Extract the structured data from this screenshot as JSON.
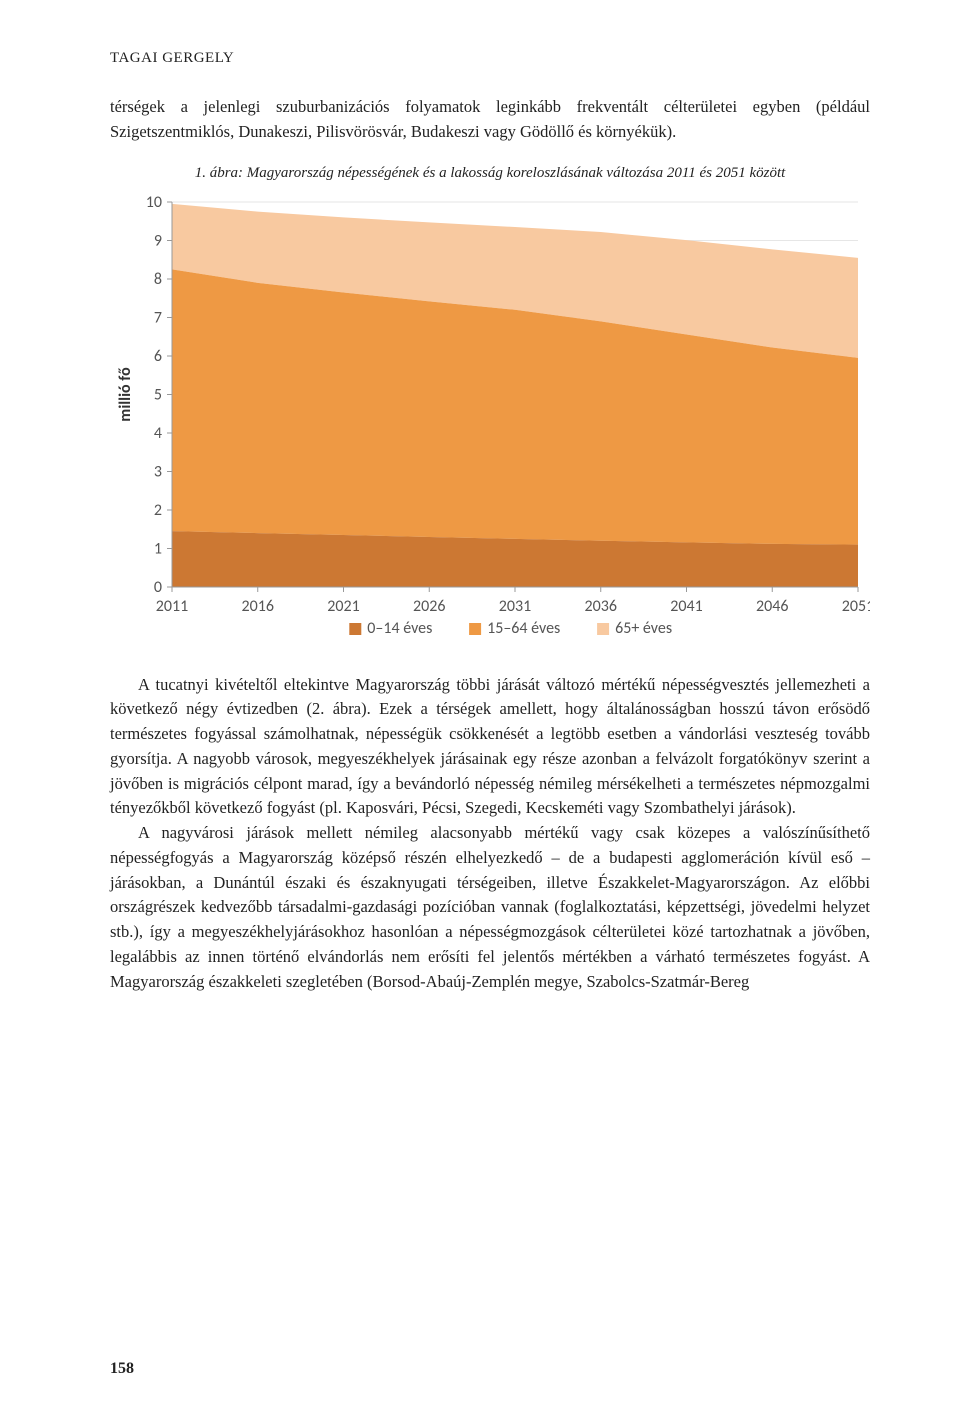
{
  "author": "TAGAI GERGELY",
  "para1": "térségek a jelenlegi szuburbanizációs folyamatok leginkább frekventált célterületei egyben (például Szigetszentmiklós, Dunakeszi, Pilisvörösvár, Budakeszi vagy Gödöllő és környékük).",
  "caption": "1. ábra: Magyarország népességének és a lakosság koreloszlásának változása 2011 és 2051 között",
  "chart": {
    "type": "area",
    "background_color": "#ffffff",
    "grid_color": "#e6e6e6",
    "plot_bg": "#ffffff",
    "font_family": "Calibri, Arial, sans-serif",
    "axis_fontsize": 16,
    "ylabel": "millió fő",
    "ylabel_fontsize": 16,
    "ylabel_rotation": -90,
    "ylim": [
      0,
      10
    ],
    "ytick_step": 1,
    "yticks": [
      0,
      1,
      2,
      3,
      4,
      5,
      6,
      7,
      8,
      9,
      10
    ],
    "xcats": [
      "2011",
      "2016",
      "2021",
      "2026",
      "2031",
      "2036",
      "2041",
      "2046",
      "2051"
    ],
    "series": [
      {
        "name": "0–14 éves",
        "color": "#cc7833",
        "values": [
          1.45,
          1.4,
          1.35,
          1.3,
          1.25,
          1.2,
          1.16,
          1.12,
          1.1
        ]
      },
      {
        "name": "15–64 éves",
        "color": "#ee9944",
        "values": [
          6.8,
          6.5,
          6.3,
          6.12,
          5.95,
          5.7,
          5.4,
          5.1,
          4.85
        ]
      },
      {
        "name": "65+ éves",
        "color": "#f8c9a0",
        "values": [
          1.7,
          1.85,
          1.95,
          2.05,
          2.15,
          2.32,
          2.45,
          2.55,
          2.6
        ]
      }
    ],
    "legend_box_size": 12,
    "legend_fontsize": 16,
    "legend_gap": 28
  },
  "para2": "A tucatnyi kivételtől eltekintve Magyarország többi járását változó mértékű népességvesztés jellemezheti a következő négy évtizedben (2. ábra). Ezek a térségek amellett, hogy általánosságban hosszú távon erősödő természetes fogyással számolhatnak, népességük csökkenését a legtöbb esetben a vándorlási veszteség tovább gyorsítja. A nagyobb városok, megyeszékhelyek járásainak egy része azonban a felvázolt forgatókönyv szerint a jövőben is migrációs célpont marad, így a bevándorló népesség némileg mérsékelheti a természetes népmozgalmi tényezőkből következő fogyást (pl. Kaposvári, Pécsi, Szegedi, Kecskeméti vagy Szombathelyi járások).",
  "para3": "A nagyvárosi járások mellett némileg alacsonyabb mértékű vagy csak közepes a valószínűsíthető népességfogyás a Magyarország középső részén elhelyezkedő – de a budapesti agglomeráción kívül eső – járásokban, a Dunántúl északi és északnyugati térségeiben, illetve Északkelet-Magyarországon. Az előbbi országrészek kedvezőbb társadalmi-gazdasági pozícióban vannak (foglalkoztatási, képzettségi, jövedelmi helyzet stb.), így a megyeszékhelyjárásokhoz hasonlóan a népességmozgások célterületei közé tartozhatnak a jövőben, legalábbis az innen történő elvándorlás nem erősíti fel jelentős mértékben a várható természetes fogyást. A Magyarország északkeleti szegletében (Borsod-Abaúj-Zemplén megye, Szabolcs-Szatmár-Bereg",
  "page_number": "158"
}
